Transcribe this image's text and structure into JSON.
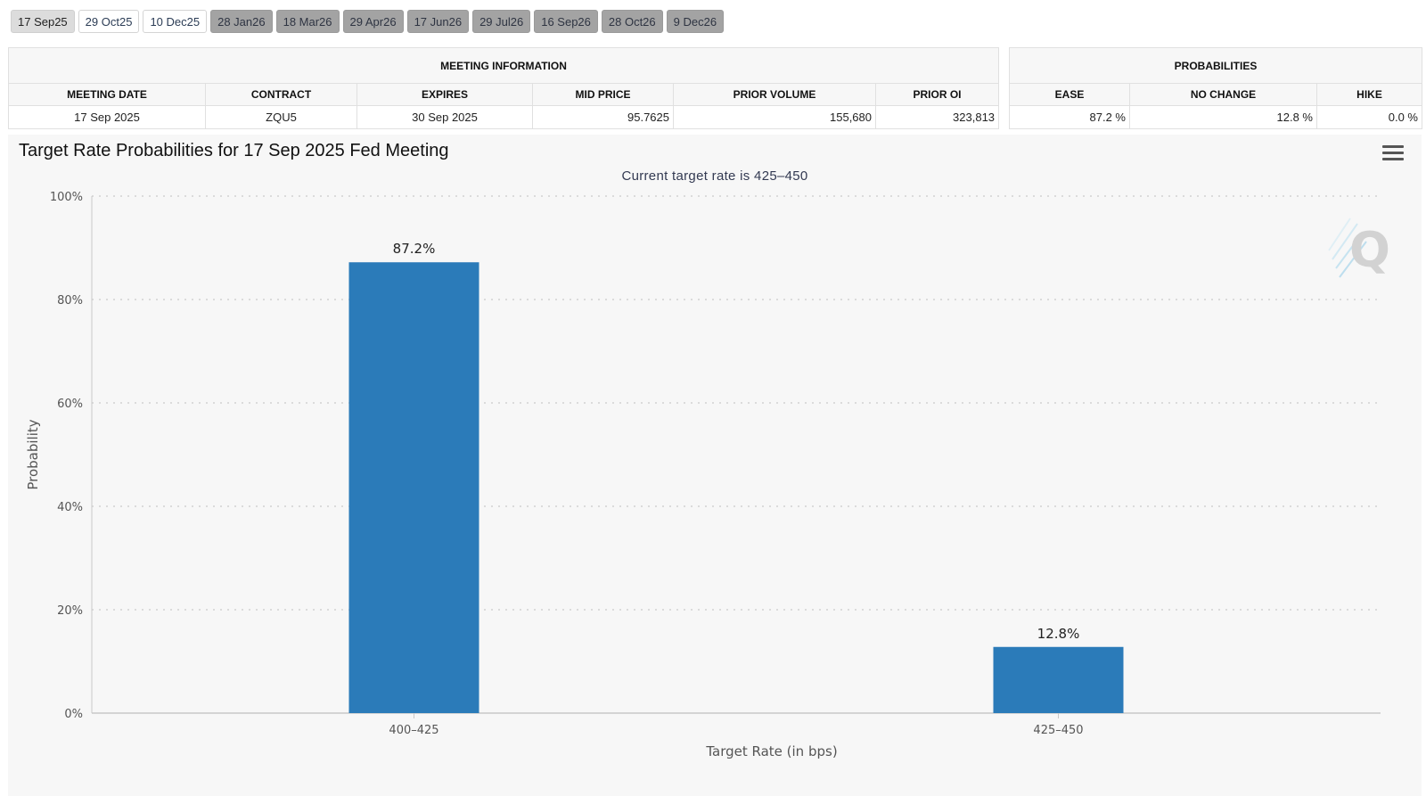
{
  "tabs": [
    {
      "label": "17 Sep25",
      "state": "active"
    },
    {
      "label": "29 Oct25",
      "state": "light"
    },
    {
      "label": "10 Dec25",
      "state": "light"
    },
    {
      "label": "28 Jan26",
      "state": "dark"
    },
    {
      "label": "18 Mar26",
      "state": "dark"
    },
    {
      "label": "29 Apr26",
      "state": "dark"
    },
    {
      "label": "17 Jun26",
      "state": "dark"
    },
    {
      "label": "29 Jul26",
      "state": "dark"
    },
    {
      "label": "16 Sep26",
      "state": "dark"
    },
    {
      "label": "28 Oct26",
      "state": "dark"
    },
    {
      "label": "9 Dec26",
      "state": "dark"
    }
  ],
  "meeting_info": {
    "title": "MEETING INFORMATION",
    "headers": [
      "MEETING DATE",
      "CONTRACT",
      "EXPIRES",
      "MID PRICE",
      "PRIOR VOLUME",
      "PRIOR OI"
    ],
    "row": [
      "17 Sep 2025",
      "ZQU5",
      "30 Sep 2025",
      "95.7625",
      "155,680",
      "323,813"
    ]
  },
  "probabilities": {
    "title": "PROBABILITIES",
    "headers": [
      "EASE",
      "NO CHANGE",
      "HIKE"
    ],
    "row": [
      "87.2 %",
      "12.8 %",
      "0.0 %"
    ]
  },
  "chart": {
    "title": "Target Rate Probabilities for 17 Sep 2025 Fed Meeting",
    "subtitle": "Current target rate is 425–450"
  },
  "colors": {
    "bar": "#2b7bb9",
    "grid": "#d2d2d2",
    "axis": "#c8c8c8"
  },
  "icons": {
    "menu": "hamburger-menu-icon",
    "watermark": "q-logo-watermark"
  },
  "chart_data": {
    "type": "bar",
    "categories": [
      "400–425",
      "425–450"
    ],
    "values": [
      87.2,
      12.8
    ],
    "data_labels": [
      "87.2%",
      "12.8%"
    ],
    "title": "Target Rate Probabilities for 17 Sep 2025 Fed Meeting",
    "subtitle": "Current target rate is 425–450",
    "xlabel": "Target Rate (in bps)",
    "ylabel": "Probability",
    "ylim": [
      0,
      100
    ],
    "yticks": [
      0,
      20,
      40,
      60,
      80,
      100
    ],
    "ytick_labels": [
      "0%",
      "20%",
      "40%",
      "60%",
      "80%",
      "100%"
    ],
    "grid": true,
    "legend": "none"
  }
}
